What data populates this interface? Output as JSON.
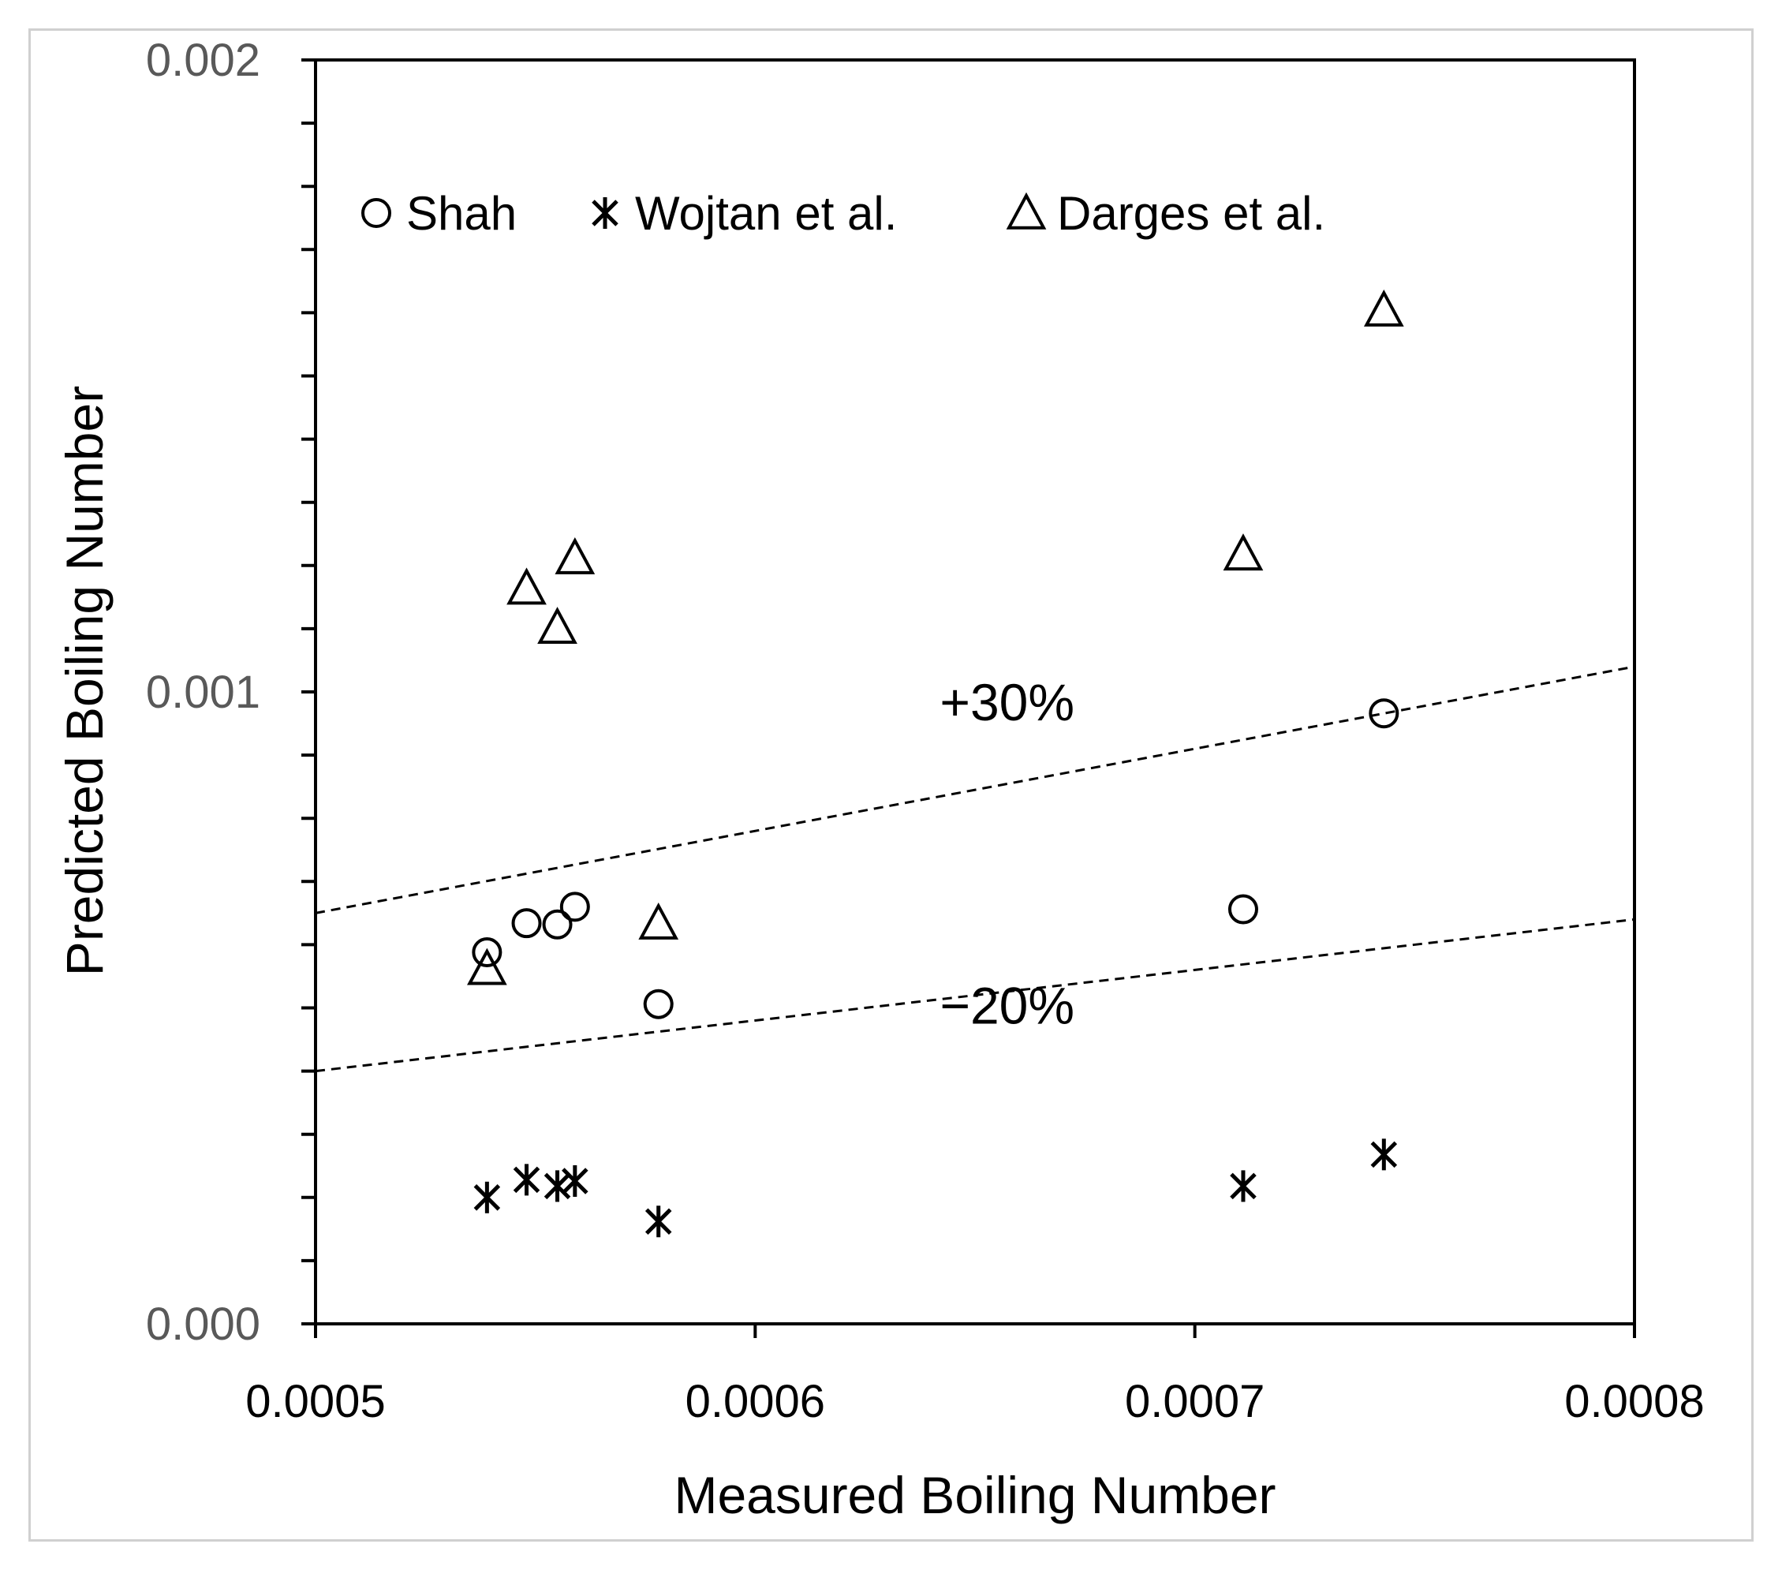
{
  "chart_data": {
    "type": "scatter",
    "title": "",
    "xlabel": "Measured Boiling Number",
    "ylabel": "Predicted Boiling Number",
    "xlim": [
      0.0005,
      0.0008
    ],
    "ylim": [
      0.0,
      0.002
    ],
    "x_ticks": [
      0.0005,
      0.0006,
      0.0007,
      0.0008
    ],
    "x_tick_labels": [
      "0.0005",
      "0.0006",
      "0.0007",
      "0.0008"
    ],
    "y_ticks": [
      0.0,
      0.001,
      0.002
    ],
    "y_tick_labels": [
      "0.000",
      "0.001",
      "0.002"
    ],
    "y_minor_step": 0.0001,
    "grid": false,
    "legend_position": "top-left",
    "series": [
      {
        "name": "Shah",
        "marker": "circle",
        "points": [
          {
            "x": 0.000539,
            "y": 0.000588
          },
          {
            "x": 0.000548,
            "y": 0.000634
          },
          {
            "x": 0.000555,
            "y": 0.000632
          },
          {
            "x": 0.000559,
            "y": 0.00066
          },
          {
            "x": 0.000578,
            "y": 0.000506
          },
          {
            "x": 0.000711,
            "y": 0.000656
          },
          {
            "x": 0.000743,
            "y": 0.000966
          }
        ]
      },
      {
        "name": "Wojtan et al.",
        "marker": "asterisk",
        "points": [
          {
            "x": 0.000539,
            "y": 0.0002
          },
          {
            "x": 0.000548,
            "y": 0.000228
          },
          {
            "x": 0.000555,
            "y": 0.000218
          },
          {
            "x": 0.000559,
            "y": 0.000226
          },
          {
            "x": 0.000578,
            "y": 0.000162
          },
          {
            "x": 0.000711,
            "y": 0.000218
          },
          {
            "x": 0.000743,
            "y": 0.000268
          }
        ]
      },
      {
        "name": "Darges et al.",
        "marker": "triangle",
        "points": [
          {
            "x": 0.000539,
            "y": 0.000562
          },
          {
            "x": 0.000548,
            "y": 0.001164
          },
          {
            "x": 0.000555,
            "y": 0.001102
          },
          {
            "x": 0.000559,
            "y": 0.001212
          },
          {
            "x": 0.000578,
            "y": 0.000634
          },
          {
            "x": 0.000711,
            "y": 0.001218
          },
          {
            "x": 0.000743,
            "y": 0.001604
          }
        ]
      }
    ],
    "reference_lines": [
      {
        "label": "+30%",
        "factor": 1.3,
        "style": "dashed",
        "label_position": {
          "x": 0.000642,
          "y": 0.000955
        }
      },
      {
        "label": "−20%",
        "factor": 0.8,
        "style": "dashed",
        "label_position": {
          "x": 0.000642,
          "y": 0.000475
        }
      }
    ]
  },
  "colors": {
    "axis": "#000000",
    "tick_label": "#595959",
    "marker": "#000000",
    "frame": "#d0d0d0"
  }
}
